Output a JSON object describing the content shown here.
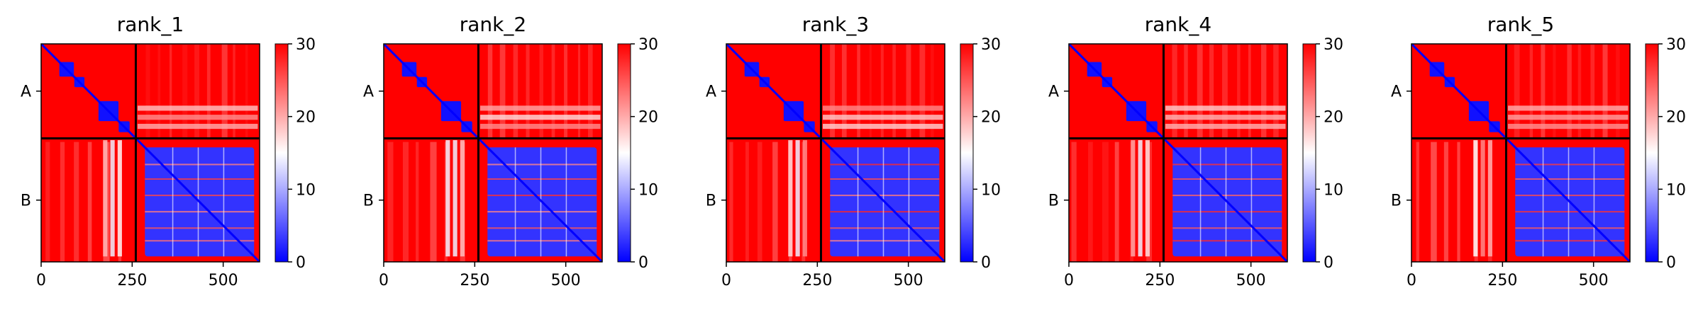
{
  "figure": {
    "background": "#ffffff"
  },
  "chart_data": [
    {
      "type": "heatmap",
      "title": "rank_1",
      "x_ticks": [
        0,
        250,
        500
      ],
      "y_tick_labels": [
        "A",
        "B"
      ],
      "chain_A_length": 260,
      "total_length": 600,
      "colorbar_ticks": [
        0,
        10,
        20,
        30
      ],
      "colorscale": {
        "min": 0,
        "max": 30,
        "low_color": "#0000ff",
        "mid_color": "#ffffff",
        "high_color": "#ff0000"
      }
    },
    {
      "type": "heatmap",
      "title": "rank_2",
      "x_ticks": [
        0,
        250,
        500
      ],
      "y_tick_labels": [
        "A",
        "B"
      ],
      "chain_A_length": 260,
      "total_length": 600,
      "colorbar_ticks": [
        0,
        10,
        20,
        30
      ],
      "colorscale": {
        "min": 0,
        "max": 30,
        "low_color": "#0000ff",
        "mid_color": "#ffffff",
        "high_color": "#ff0000"
      }
    },
    {
      "type": "heatmap",
      "title": "rank_3",
      "x_ticks": [
        0,
        250,
        500
      ],
      "y_tick_labels": [
        "A",
        "B"
      ],
      "chain_A_length": 260,
      "total_length": 600,
      "colorbar_ticks": [
        0,
        10,
        20,
        30
      ],
      "colorscale": {
        "min": 0,
        "max": 30,
        "low_color": "#0000ff",
        "mid_color": "#ffffff",
        "high_color": "#ff0000"
      }
    },
    {
      "type": "heatmap",
      "title": "rank_4",
      "x_ticks": [
        0,
        250,
        500
      ],
      "y_tick_labels": [
        "A",
        "B"
      ],
      "chain_A_length": 260,
      "total_length": 600,
      "colorbar_ticks": [
        0,
        10,
        20,
        30
      ],
      "colorscale": {
        "min": 0,
        "max": 30,
        "low_color": "#0000ff",
        "mid_color": "#ffffff",
        "high_color": "#ff0000"
      }
    },
    {
      "type": "heatmap",
      "title": "rank_5",
      "x_ticks": [
        0,
        250,
        500
      ],
      "y_tick_labels": [
        "A",
        "B"
      ],
      "chain_A_length": 260,
      "total_length": 600,
      "colorbar_ticks": [
        0,
        10,
        20,
        30
      ],
      "colorscale": {
        "min": 0,
        "max": 30,
        "low_color": "#0000ff",
        "mid_color": "#ffffff",
        "high_color": "#ff0000"
      }
    }
  ]
}
